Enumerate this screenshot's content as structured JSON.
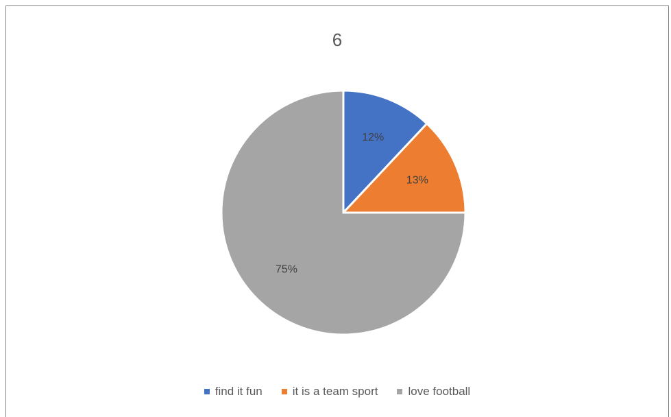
{
  "chart_data": {
    "type": "pie",
    "title": "6",
    "categories": [
      "find it fun",
      "it is a team sport",
      "love football"
    ],
    "values": [
      12,
      13,
      75
    ],
    "labels": [
      "12%",
      "13%",
      "75%"
    ],
    "colors": [
      "#4472c4",
      "#ed7d31",
      "#a5a5a5"
    ],
    "legend": "bottom"
  }
}
